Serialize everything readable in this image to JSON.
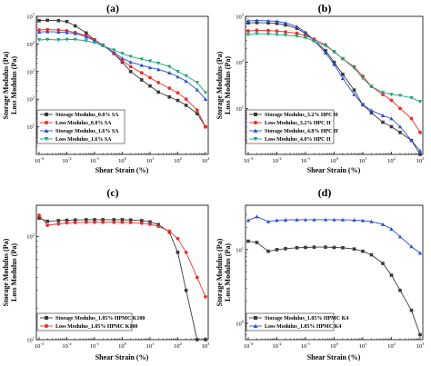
{
  "chart_data": [
    {
      "panel_label": "(a)",
      "type": "line",
      "xlabel": "Shear Strain (%)",
      "ylabel_top": "Storage Modulus (Pa)",
      "ylabel_bottom": "Loss Modulus (Pa)",
      "x_scale": "log",
      "y_scale": "log",
      "xlim": [
        0.001,
        1000
      ],
      "ylim": [
        1,
        100000
      ],
      "x_ticks": [
        {
          "v": 0.001,
          "base": "10",
          "exp": "-3"
        },
        {
          "v": 0.01,
          "base": "10",
          "exp": "-2"
        },
        {
          "v": 0.1,
          "base": "10",
          "exp": "-1"
        },
        {
          "v": 1,
          "base": "10",
          "exp": "0"
        },
        {
          "v": 10,
          "base": "10",
          "exp": "1"
        },
        {
          "v": 100,
          "base": "10",
          "exp": "2"
        },
        {
          "v": 1000,
          "base": "10",
          "exp": "3"
        }
      ],
      "y_ticks": [
        {
          "v": 10,
          "base": "10",
          "exp": "1"
        },
        {
          "v": 100,
          "base": "10",
          "exp": "2"
        },
        {
          "v": 1000,
          "base": "10",
          "exp": "3"
        },
        {
          "v": 10000,
          "base": "10",
          "exp": "4"
        },
        {
          "v": 100000,
          "base": "10",
          "exp": "5"
        }
      ],
      "legend_position": "bottom-left",
      "series": [
        {
          "name": "Storage Modulus_0.8% SA",
          "color": "#3a3a3a",
          "marker": "square",
          "x": [
            0.001,
            0.002,
            0.005,
            0.01,
            0.02,
            0.05,
            0.1,
            0.2,
            0.5,
            1,
            2,
            5,
            10,
            20,
            50,
            100,
            200,
            500,
            1000
          ],
          "y": [
            70000,
            72000,
            70000,
            65000,
            45000,
            25000,
            14000,
            9000,
            4500,
            2200,
            1000,
            500,
            300,
            180,
            120,
            90,
            60,
            30,
            10
          ]
        },
        {
          "name": "Loss Modulus_0.8% SA",
          "color": "#e8312c",
          "marker": "circle",
          "x": [
            0.001,
            0.002,
            0.005,
            0.01,
            0.02,
            0.05,
            0.1,
            0.2,
            0.5,
            1,
            2,
            5,
            10,
            20,
            50,
            100,
            200,
            500,
            1000
          ],
          "y": [
            32000,
            33000,
            32000,
            30000,
            26000,
            20000,
            14000,
            9000,
            4500,
            2500,
            1500,
            900,
            600,
            400,
            250,
            170,
            100,
            40,
            10
          ]
        },
        {
          "name": "Storage Modulus_1.6% SA",
          "color": "#2b4fd6",
          "marker": "triangle-up",
          "x": [
            0.001,
            0.002,
            0.005,
            0.01,
            0.02,
            0.05,
            0.1,
            0.2,
            0.5,
            1,
            2,
            5,
            10,
            20,
            50,
            100,
            200,
            500,
            1000
          ],
          "y": [
            27000,
            28000,
            27000,
            26000,
            24000,
            18000,
            13000,
            9000,
            5000,
            3000,
            2200,
            1700,
            1400,
            1200,
            900,
            650,
            450,
            220,
            100
          ]
        },
        {
          "name": "Loss Modulus_1.6% SA",
          "color": "#1fa37a",
          "marker": "triangle-down",
          "x": [
            0.001,
            0.002,
            0.005,
            0.01,
            0.02,
            0.05,
            0.1,
            0.2,
            0.5,
            1,
            2,
            5,
            10,
            20,
            50,
            100,
            200,
            500,
            1000
          ],
          "y": [
            14000,
            14500,
            14000,
            14500,
            14500,
            13000,
            11000,
            8500,
            6000,
            4500,
            3500,
            2800,
            2400,
            2000,
            1500,
            1000,
            700,
            400,
            170
          ]
        }
      ]
    },
    {
      "panel_label": "(b)",
      "type": "line",
      "xlabel": "Shear Strain (%)",
      "ylabel_top": "Storage Modulus (Pa)",
      "ylabel_bottom": "Loss Modulus (Pa)",
      "x_scale": "log",
      "y_scale": "log",
      "xlim": [
        0.001,
        1000
      ],
      "ylim": [
        1,
        1000
      ],
      "x_ticks": [
        {
          "v": 0.001,
          "base": "10",
          "exp": "-3"
        },
        {
          "v": 0.01,
          "base": "10",
          "exp": "-2"
        },
        {
          "v": 0.1,
          "base": "10",
          "exp": "-1"
        },
        {
          "v": 1,
          "base": "10",
          "exp": "0"
        },
        {
          "v": 10,
          "base": "10",
          "exp": "1"
        },
        {
          "v": 100,
          "base": "10",
          "exp": "2"
        },
        {
          "v": 1000,
          "base": "10",
          "exp": "3"
        }
      ],
      "y_ticks": [
        {
          "v": 10,
          "base": "10",
          "exp": "1"
        },
        {
          "v": 100,
          "base": "10",
          "exp": "2"
        },
        {
          "v": 1000,
          "base": "10",
          "exp": "3"
        }
      ],
      "legend_position": "bottom-left",
      "series": [
        {
          "name": "Storage Modulus_3.2% HPC H",
          "color": "#3a3a3a",
          "marker": "square",
          "x": [
            0.001,
            0.002,
            0.005,
            0.01,
            0.02,
            0.05,
            0.1,
            0.2,
            0.5,
            1,
            2,
            5,
            10,
            20,
            50,
            100,
            200,
            500,
            1000
          ],
          "y": [
            720,
            730,
            720,
            700,
            650,
            550,
            420,
            300,
            180,
            100,
            55,
            25,
            12,
            8,
            5,
            4,
            3,
            2,
            1
          ]
        },
        {
          "name": "Loss Modulus_3.2% HPC H",
          "color": "#e8312c",
          "marker": "circle",
          "x": [
            0.001,
            0.002,
            0.005,
            0.01,
            0.02,
            0.05,
            0.1,
            0.2,
            0.5,
            1,
            2,
            5,
            10,
            20,
            50,
            100,
            200,
            500,
            1000
          ],
          "y": [
            480,
            500,
            490,
            480,
            460,
            430,
            380,
            320,
            240,
            170,
            120,
            80,
            50,
            30,
            20,
            15,
            10,
            6,
            3
          ]
        },
        {
          "name": "Storage Modulus_4.8% HPC H",
          "color": "#2b4fd6",
          "marker": "triangle-up",
          "x": [
            0.001,
            0.002,
            0.005,
            0.01,
            0.02,
            0.05,
            0.1,
            0.2,
            0.5,
            1,
            2,
            5,
            10,
            20,
            50,
            100,
            200,
            500,
            1000
          ],
          "y": [
            800,
            820,
            800,
            780,
            720,
            600,
            450,
            300,
            160,
            90,
            45,
            20,
            12,
            9,
            7,
            6,
            4,
            2,
            1.2
          ]
        },
        {
          "name": "Loss Modulus_4.8% HPC H",
          "color": "#1fa37a",
          "marker": "triangle-down",
          "x": [
            0.001,
            0.002,
            0.005,
            0.01,
            0.02,
            0.05,
            0.1,
            0.2,
            0.5,
            1,
            2,
            5,
            10,
            20,
            50,
            100,
            200,
            500,
            1000
          ],
          "y": [
            400,
            420,
            410,
            400,
            390,
            370,
            340,
            290,
            230,
            170,
            120,
            75,
            45,
            30,
            22,
            20,
            19,
            17,
            14
          ]
        }
      ]
    },
    {
      "panel_label": "(c)",
      "type": "line",
      "xlabel": "Shear Strain (%)",
      "ylabel_top": "Storage Modulus (Pa)",
      "ylabel_bottom": "Loss Modulus (Pa)",
      "x_scale": "log",
      "y_scale": "log",
      "xlim": [
        0.001,
        1000
      ],
      "ylim": [
        10,
        200
      ],
      "x_ticks": [
        {
          "v": 0.001,
          "base": "10",
          "exp": "-3"
        },
        {
          "v": 0.01,
          "base": "10",
          "exp": "-2"
        },
        {
          "v": 0.1,
          "base": "10",
          "exp": "-1"
        },
        {
          "v": 1,
          "base": "10",
          "exp": "0"
        },
        {
          "v": 10,
          "base": "10",
          "exp": "1"
        },
        {
          "v": 100,
          "base": "10",
          "exp": "2"
        },
        {
          "v": 1000,
          "base": "10",
          "exp": "3"
        }
      ],
      "y_ticks": [
        {
          "v": 10,
          "base": "10",
          "exp": "1"
        },
        {
          "v": 100,
          "base": "10",
          "exp": "2"
        }
      ],
      "legend_position": "bottom-left",
      "series": [
        {
          "name": "Storage Modulus_1.05% HPMC K100",
          "color": "#3a3a3a",
          "marker": "square",
          "x": [
            0.001,
            0.002,
            0.005,
            0.01,
            0.02,
            0.05,
            0.1,
            0.2,
            0.5,
            1,
            2,
            5,
            10,
            20,
            50,
            100,
            200,
            500,
            1000
          ],
          "y": [
            150,
            140,
            142,
            143,
            144,
            145,
            145,
            145,
            145,
            145,
            144,
            142,
            138,
            130,
            110,
            70,
            30,
            10,
            4
          ]
        },
        {
          "name": "Loss Modulus_1.05% HPMC K100",
          "color": "#e8312c",
          "marker": "circle",
          "x": [
            0.001,
            0.002,
            0.005,
            0.01,
            0.02,
            0.05,
            0.1,
            0.2,
            0.5,
            1,
            2,
            5,
            10,
            20,
            50,
            100,
            200,
            500,
            1000
          ],
          "y": [
            160,
            128,
            132,
            135,
            136,
            137,
            137,
            137,
            137,
            137,
            136,
            134,
            131,
            125,
            112,
            95,
            70,
            40,
            26
          ]
        }
      ]
    },
    {
      "panel_label": "(d)",
      "type": "line",
      "xlabel": "Shear Strain (%)",
      "ylabel_top": "Storage Modulus (Pa)",
      "ylabel_bottom": "Loss Modulus (Pa)",
      "x_scale": "log",
      "y_scale": "log",
      "xlim": [
        0.001,
        1000
      ],
      "ylim": [
        0.6,
        40
      ],
      "x_ticks": [
        {
          "v": 0.001,
          "base": "10",
          "exp": "-3"
        },
        {
          "v": 0.01,
          "base": "10",
          "exp": "-2"
        },
        {
          "v": 0.1,
          "base": "10",
          "exp": "-1"
        },
        {
          "v": 1,
          "base": "10",
          "exp": "0"
        },
        {
          "v": 10,
          "base": "10",
          "exp": "1"
        },
        {
          "v": 100,
          "base": "10",
          "exp": "2"
        },
        {
          "v": 1000,
          "base": "10",
          "exp": "3"
        }
      ],
      "y_ticks": [
        {
          "v": 1,
          "base": "10",
          "exp": "0"
        },
        {
          "v": 10,
          "base": "10",
          "exp": "1"
        }
      ],
      "legend_position": "bottom-left",
      "series": [
        {
          "name": "Storage Modulus_1.05% HPMC K4",
          "color": "#3a3a3a",
          "marker": "square",
          "x": [
            0.001,
            0.002,
            0.005,
            0.01,
            0.02,
            0.05,
            0.1,
            0.2,
            0.5,
            1,
            2,
            5,
            10,
            20,
            50,
            100,
            200,
            500,
            1000
          ],
          "y": [
            13,
            12.5,
            9.5,
            10,
            10.3,
            10.6,
            10.7,
            10.8,
            10.8,
            10.7,
            10.6,
            10.2,
            9.5,
            8.5,
            6.5,
            4.5,
            2.8,
            1.5,
            0.7
          ]
        },
        {
          "name": "Loss Modulus_1.05% HPMC K4",
          "color": "#2b4fd6",
          "marker": "triangle-up",
          "x": [
            0.001,
            0.002,
            0.005,
            0.01,
            0.02,
            0.05,
            0.1,
            0.2,
            0.5,
            1,
            2,
            5,
            10,
            20,
            50,
            100,
            200,
            500,
            1000
          ],
          "y": [
            25,
            28,
            24,
            25,
            25.3,
            25.4,
            25.5,
            25.5,
            25.5,
            25.5,
            25.4,
            25.2,
            24.8,
            24,
            22,
            19,
            15,
            11,
            9
          ]
        }
      ]
    }
  ]
}
